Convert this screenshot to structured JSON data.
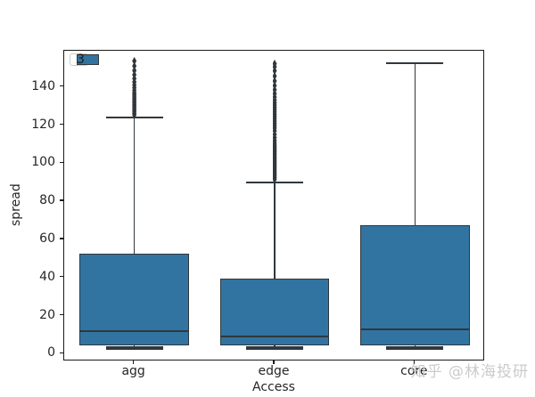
{
  "chart_data": {
    "type": "boxplot",
    "title": "",
    "xlabel": "Access",
    "ylabel": "spread",
    "categories": [
      "agg",
      "edge",
      "core"
    ],
    "ylim": [
      -4,
      159
    ],
    "yticks": [
      0,
      20,
      40,
      60,
      80,
      100,
      120,
      140
    ],
    "grid": false,
    "legend": {
      "label": "3",
      "position": "upper left"
    },
    "colors": {
      "box_fill": "#3274a1",
      "box_edge": "#30373d",
      "whisker": "#30373d",
      "spine": "#1a1a1a"
    },
    "boxes": [
      {
        "category": "agg",
        "q1": 4.3,
        "median": 12,
        "q3": 52.5,
        "whisker_low": 3.2,
        "whisker_high": 124,
        "outliers": [
          125.3,
          126.2,
          127.1,
          128.0,
          128.9,
          129.8,
          130.7,
          131.6,
          132.5,
          133.4,
          134.3,
          135.2,
          136.1,
          137.0,
          138.2,
          139.6,
          141.0,
          142.6,
          144.4,
          146.4,
          148.6,
          151.0,
          153.6
        ]
      },
      {
        "category": "edge",
        "q1": 4.2,
        "median": 9,
        "q3": 39.5,
        "whisker_low": 3.2,
        "whisker_high": 90,
        "outliers": [
          91.5,
          92.4,
          93.3,
          94.2,
          95.1,
          96.0,
          96.9,
          97.8,
          98.7,
          99.6,
          100.5,
          101.4,
          102.3,
          103.2,
          104.1,
          105.0,
          105.9,
          106.8,
          107.7,
          108.6,
          109.5,
          110.6,
          111.9,
          113.4,
          115.1,
          117.0,
          118.5,
          119.7,
          120.9,
          122.1,
          123.3,
          124.5,
          125.7,
          126.9,
          128.1,
          129.3,
          130.5,
          131.7,
          133.1,
          134.7,
          136.5,
          138.5,
          140.7,
          143.1,
          145.7,
          148.5,
          150.6,
          152.2
        ]
      },
      {
        "category": "core",
        "q1": 4.3,
        "median": 13,
        "q3": 67.5,
        "whisker_low": 3.2,
        "whisker_high": 152.5,
        "outliers": []
      }
    ]
  },
  "watermark": {
    "text": "知乎 @林海投研",
    "color": "#cbcbcb"
  }
}
